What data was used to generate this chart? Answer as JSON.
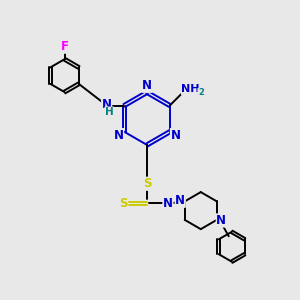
{
  "background_color": "#e8e8e8",
  "bond_color": "#000000",
  "N_color": "#0000cc",
  "F_color": "#ff00ff",
  "S_color": "#cccc00",
  "H_color": "#008080",
  "figsize": [
    3.0,
    3.0
  ],
  "dpi": 100,
  "xlim": [
    0,
    10
  ],
  "ylim": [
    0,
    10
  ]
}
